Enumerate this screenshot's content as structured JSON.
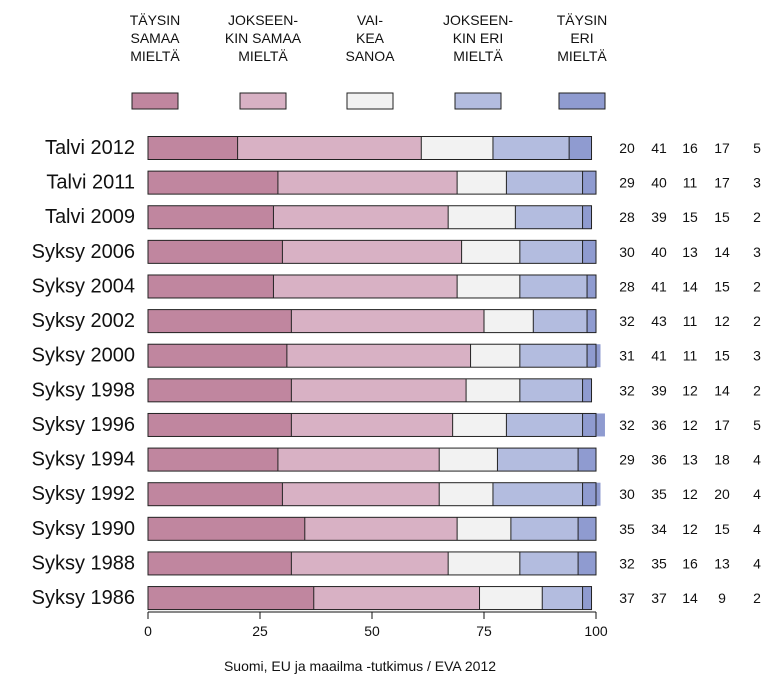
{
  "chart_data": {
    "type": "bar",
    "orientation": "horizontal",
    "stacked": true,
    "series": [
      {
        "name": "TÄYSIN SAMAA MIELTÄ",
        "name_lines": [
          "TÄYSIN",
          "SAMAA",
          "MIELTÄ"
        ],
        "color": "#c0869f",
        "values": [
          20,
          29,
          28,
          30,
          28,
          32,
          31,
          32,
          32,
          29,
          30,
          35,
          32,
          37
        ]
      },
      {
        "name": "JOKSEEN-KIN SAMAA MIELTÄ",
        "name_lines": [
          "JOKSEEN-",
          "KIN SAMAA",
          "MIELTÄ"
        ],
        "color": "#d8b1c4",
        "values": [
          41,
          40,
          39,
          40,
          41,
          43,
          41,
          39,
          36,
          36,
          35,
          34,
          35,
          37
        ]
      },
      {
        "name": "VAI-KEA SANOA",
        "name_lines": [
          "VAI-",
          "KEA",
          "SANOA"
        ],
        "color": "#f2f2f2",
        "values": [
          16,
          11,
          15,
          13,
          14,
          11,
          11,
          12,
          12,
          13,
          12,
          12,
          16,
          14
        ]
      },
      {
        "name": "JOKSEEN-KIN ERI MIELTÄ",
        "name_lines": [
          "JOKSEEN-",
          "KIN ERI",
          "MIELTÄ"
        ],
        "color": "#b3bcdf",
        "values": [
          17,
          17,
          15,
          14,
          15,
          12,
          15,
          14,
          17,
          18,
          20,
          15,
          13,
          9
        ]
      },
      {
        "name": "TÄYSIN ERI MIELTÄ",
        "name_lines": [
          "TÄYSIN",
          "ERI",
          "MIELTÄ"
        ],
        "color": "#8f9bd0",
        "values": [
          5,
          3,
          2,
          3,
          2,
          2,
          3,
          2,
          5,
          4,
          4,
          4,
          4,
          2
        ]
      }
    ],
    "categories": [
      "Talvi 2012",
      "Talvi 2011",
      "Talvi 2009",
      "Syksy 2006",
      "Syksy 2004",
      "Syksy 2002",
      "Syksy 2000",
      "Syksy 1998",
      "Syksy 1996",
      "Syksy 1994",
      "Syksy 1992",
      "Syksy 1990",
      "Syksy 1988",
      "Syksy 1986"
    ],
    "xlim": [
      0,
      100
    ],
    "xticks": [
      0,
      25,
      50,
      75,
      100
    ],
    "legend_position": "top",
    "grid": false,
    "bar_edge_color": "#222222",
    "source": "Suomi, EU ja maailma -tutkimus / EVA 2012"
  }
}
